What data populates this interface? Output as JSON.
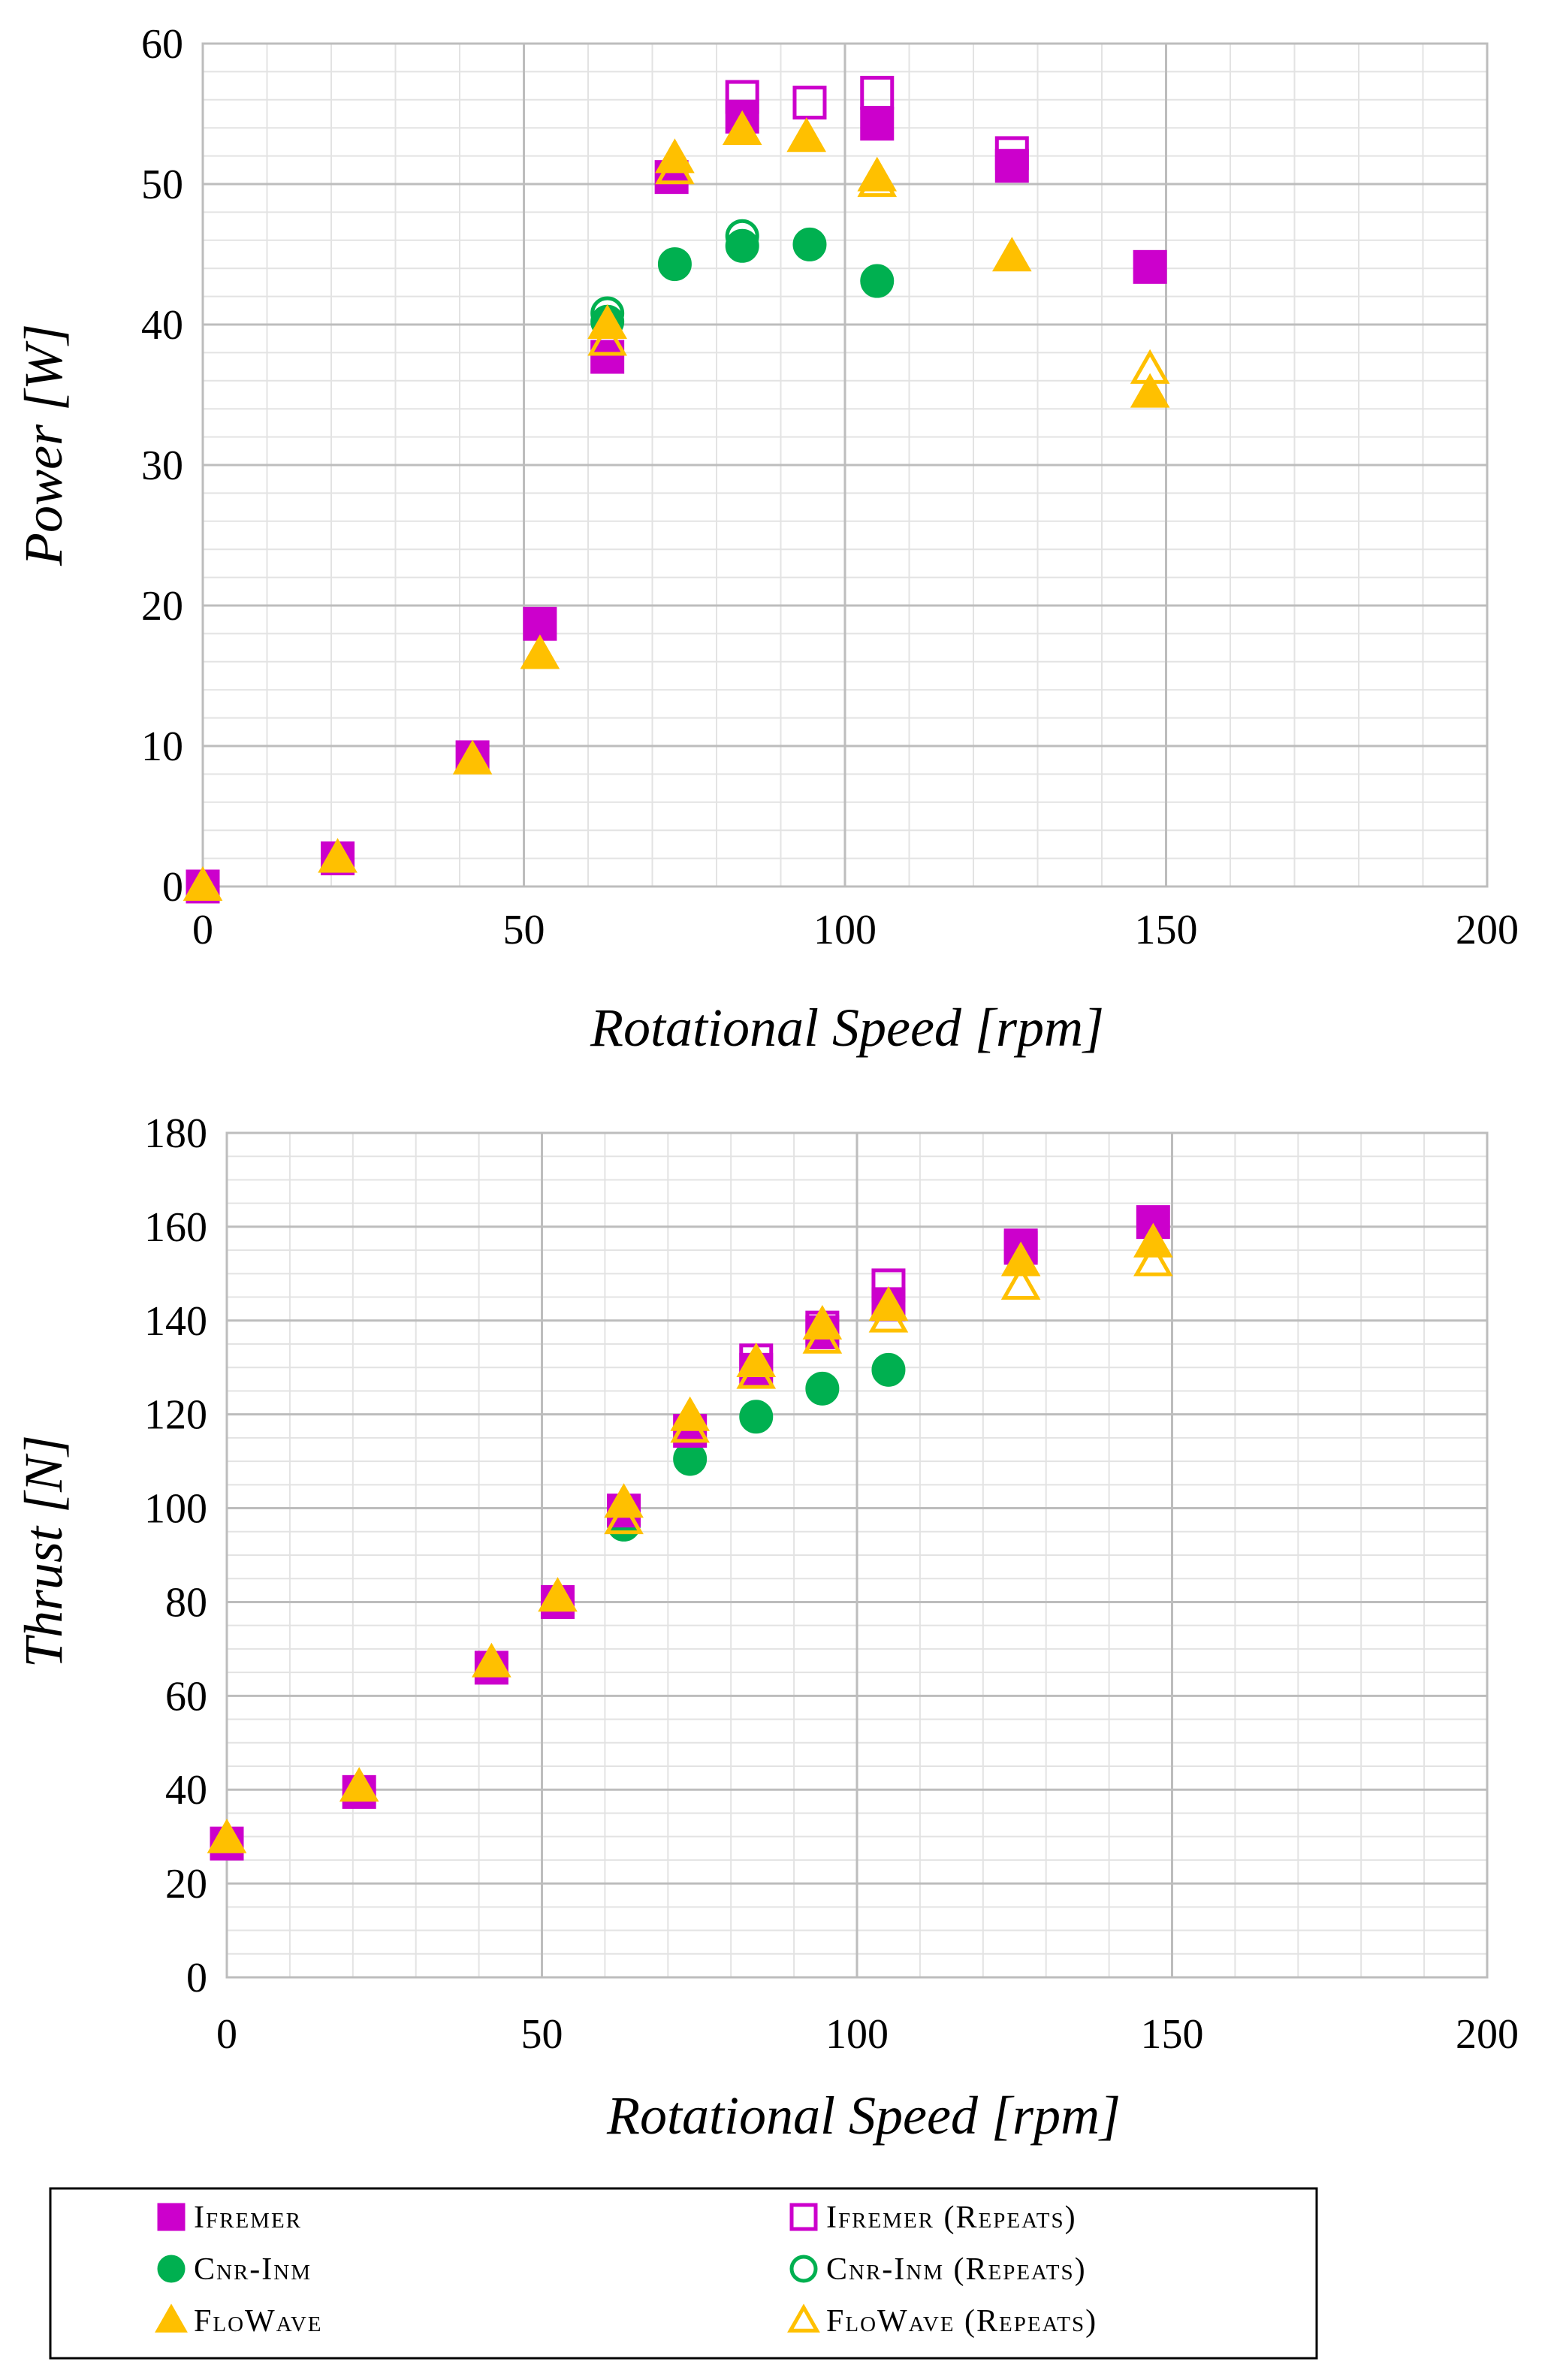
{
  "colors": {
    "ifremer": "#CC00CC",
    "cnr_inm": "#00B050",
    "flowave": "#FFC000"
  },
  "chart_data": [
    {
      "type": "scatter",
      "title": "",
      "xlabel": "Rotational Speed [rpm]",
      "ylabel": "Power [W]",
      "xlim": [
        0,
        200
      ],
      "ylim": [
        0,
        60
      ],
      "xticks": [
        "0",
        "50",
        "100",
        "150",
        "200"
      ],
      "yticks": [
        "0",
        "10",
        "20",
        "30",
        "40",
        "50",
        "60"
      ],
      "grid": true,
      "series": [
        {
          "name": "Ifremer",
          "marker": "square",
          "filled": true,
          "color": "#CC00CC",
          "x": [
            0,
            21,
            42,
            52.5,
            63,
            73,
            84,
            105,
            126,
            147.5
          ],
          "y": [
            0,
            2,
            9.2,
            18.7,
            37.7,
            50.5,
            54.8,
            54.3,
            51.3,
            44.1
          ]
        },
        {
          "name": "Ifremer (Repeats)",
          "marker": "square",
          "filled": false,
          "color": "#CC00CC",
          "x": [
            84,
            94.5,
            105,
            126
          ],
          "y": [
            56.2,
            55.8,
            56.5,
            52.2
          ]
        },
        {
          "name": "Cnr-Inm",
          "marker": "circle",
          "filled": true,
          "color": "#00B050",
          "x": [
            63,
            73.5,
            84,
            94.5,
            105
          ],
          "y": [
            40.2,
            44.3,
            45.6,
            45.7,
            43.1
          ]
        },
        {
          "name": "Cnr-Inm (Repeats)",
          "marker": "circle",
          "filled": false,
          "color": "#00B050",
          "x": [
            63,
            84
          ],
          "y": [
            40.8,
            46.3
          ]
        },
        {
          "name": "FloWave",
          "marker": "triangle",
          "filled": true,
          "color": "#FFC000",
          "x": [
            0,
            21,
            42,
            52.5,
            63,
            73.5,
            84,
            94,
            105,
            126,
            147.5
          ],
          "y": [
            0,
            2,
            9,
            16.5,
            40,
            51.8,
            53.8,
            53.3,
            50.5,
            44.8,
            35.1
          ]
        },
        {
          "name": "FloWave (Repeats)",
          "marker": "triangle",
          "filled": false,
          "color": "#FFC000",
          "x": [
            63,
            73.5,
            105,
            147.5
          ],
          "y": [
            38.8,
            51,
            50.1,
            36.8
          ]
        }
      ]
    },
    {
      "type": "scatter",
      "title": "",
      "xlabel": "Rotational Speed [rpm]",
      "ylabel": "Thrust [N]",
      "xlim": [
        0,
        200
      ],
      "ylim": [
        0,
        180
      ],
      "xticks": [
        "0",
        "50",
        "100",
        "150",
        "200"
      ],
      "yticks": [
        "0",
        "20",
        "40",
        "60",
        "80",
        "100",
        "120",
        "140",
        "160",
        "180"
      ],
      "grid": true,
      "series": [
        {
          "name": "Ifremer",
          "marker": "square",
          "filled": true,
          "color": "#CC00CC",
          "x": [
            0,
            21,
            42,
            52.5,
            63,
            73.5,
            84,
            94.5,
            105,
            126,
            147
          ],
          "y": [
            28.5,
            39.5,
            66,
            80,
            99.5,
            116.5,
            129.5,
            137.5,
            143.5,
            155.5,
            161
          ]
        },
        {
          "name": "Ifremer (Repeats)",
          "marker": "square",
          "filled": false,
          "color": "#CC00CC",
          "x": [
            84,
            94.5,
            105,
            126
          ],
          "y": [
            131.5,
            138.5,
            147.5,
            156
          ]
        },
        {
          "name": "Cnr-Inm",
          "marker": "circle",
          "filled": true,
          "color": "#00B050",
          "x": [
            63,
            73.5,
            84,
            94.5,
            105
          ],
          "y": [
            96.5,
            110.5,
            119.5,
            125.5,
            129.5
          ]
        },
        {
          "name": "Cnr-Inm (Repeats)",
          "marker": "circle",
          "filled": false,
          "color": "#00B050",
          "x": [
            63
          ],
          "y": [
            98
          ]
        },
        {
          "name": "FloWave",
          "marker": "triangle",
          "filled": true,
          "color": "#FFC000",
          "x": [
            0,
            21,
            42,
            52.5,
            63,
            73.5,
            84,
            94.5,
            105,
            126,
            147
          ],
          "y": [
            29.5,
            40.5,
            67,
            81,
            101,
            119.5,
            131,
            139,
            143,
            152.5,
            156.5
          ]
        },
        {
          "name": "FloWave (Repeats)",
          "marker": "triangle",
          "filled": false,
          "color": "#FFC000",
          "x": [
            63,
            73.5,
            84,
            94.5,
            105,
            126,
            147
          ],
          "y": [
            97.5,
            117,
            128.5,
            136,
            140.5,
            147.5,
            152.5
          ]
        }
      ]
    }
  ],
  "legend": {
    "items": [
      {
        "label": "Ifremer",
        "marker": "square",
        "filled": true,
        "color": "#CC00CC"
      },
      {
        "label": "Ifremer (Repeats)",
        "marker": "square",
        "filled": false,
        "color": "#CC00CC"
      },
      {
        "label": "Cnr-Inm",
        "marker": "circle",
        "filled": true,
        "color": "#00B050"
      },
      {
        "label": "Cnr-Inm (Repeats)",
        "marker": "circle",
        "filled": false,
        "color": "#00B050"
      },
      {
        "label": "FloWave",
        "marker": "triangle",
        "filled": true,
        "color": "#FFC000"
      },
      {
        "label": "FloWave (Repeats)",
        "marker": "triangle",
        "filled": false,
        "color": "#FFC000"
      }
    ]
  }
}
